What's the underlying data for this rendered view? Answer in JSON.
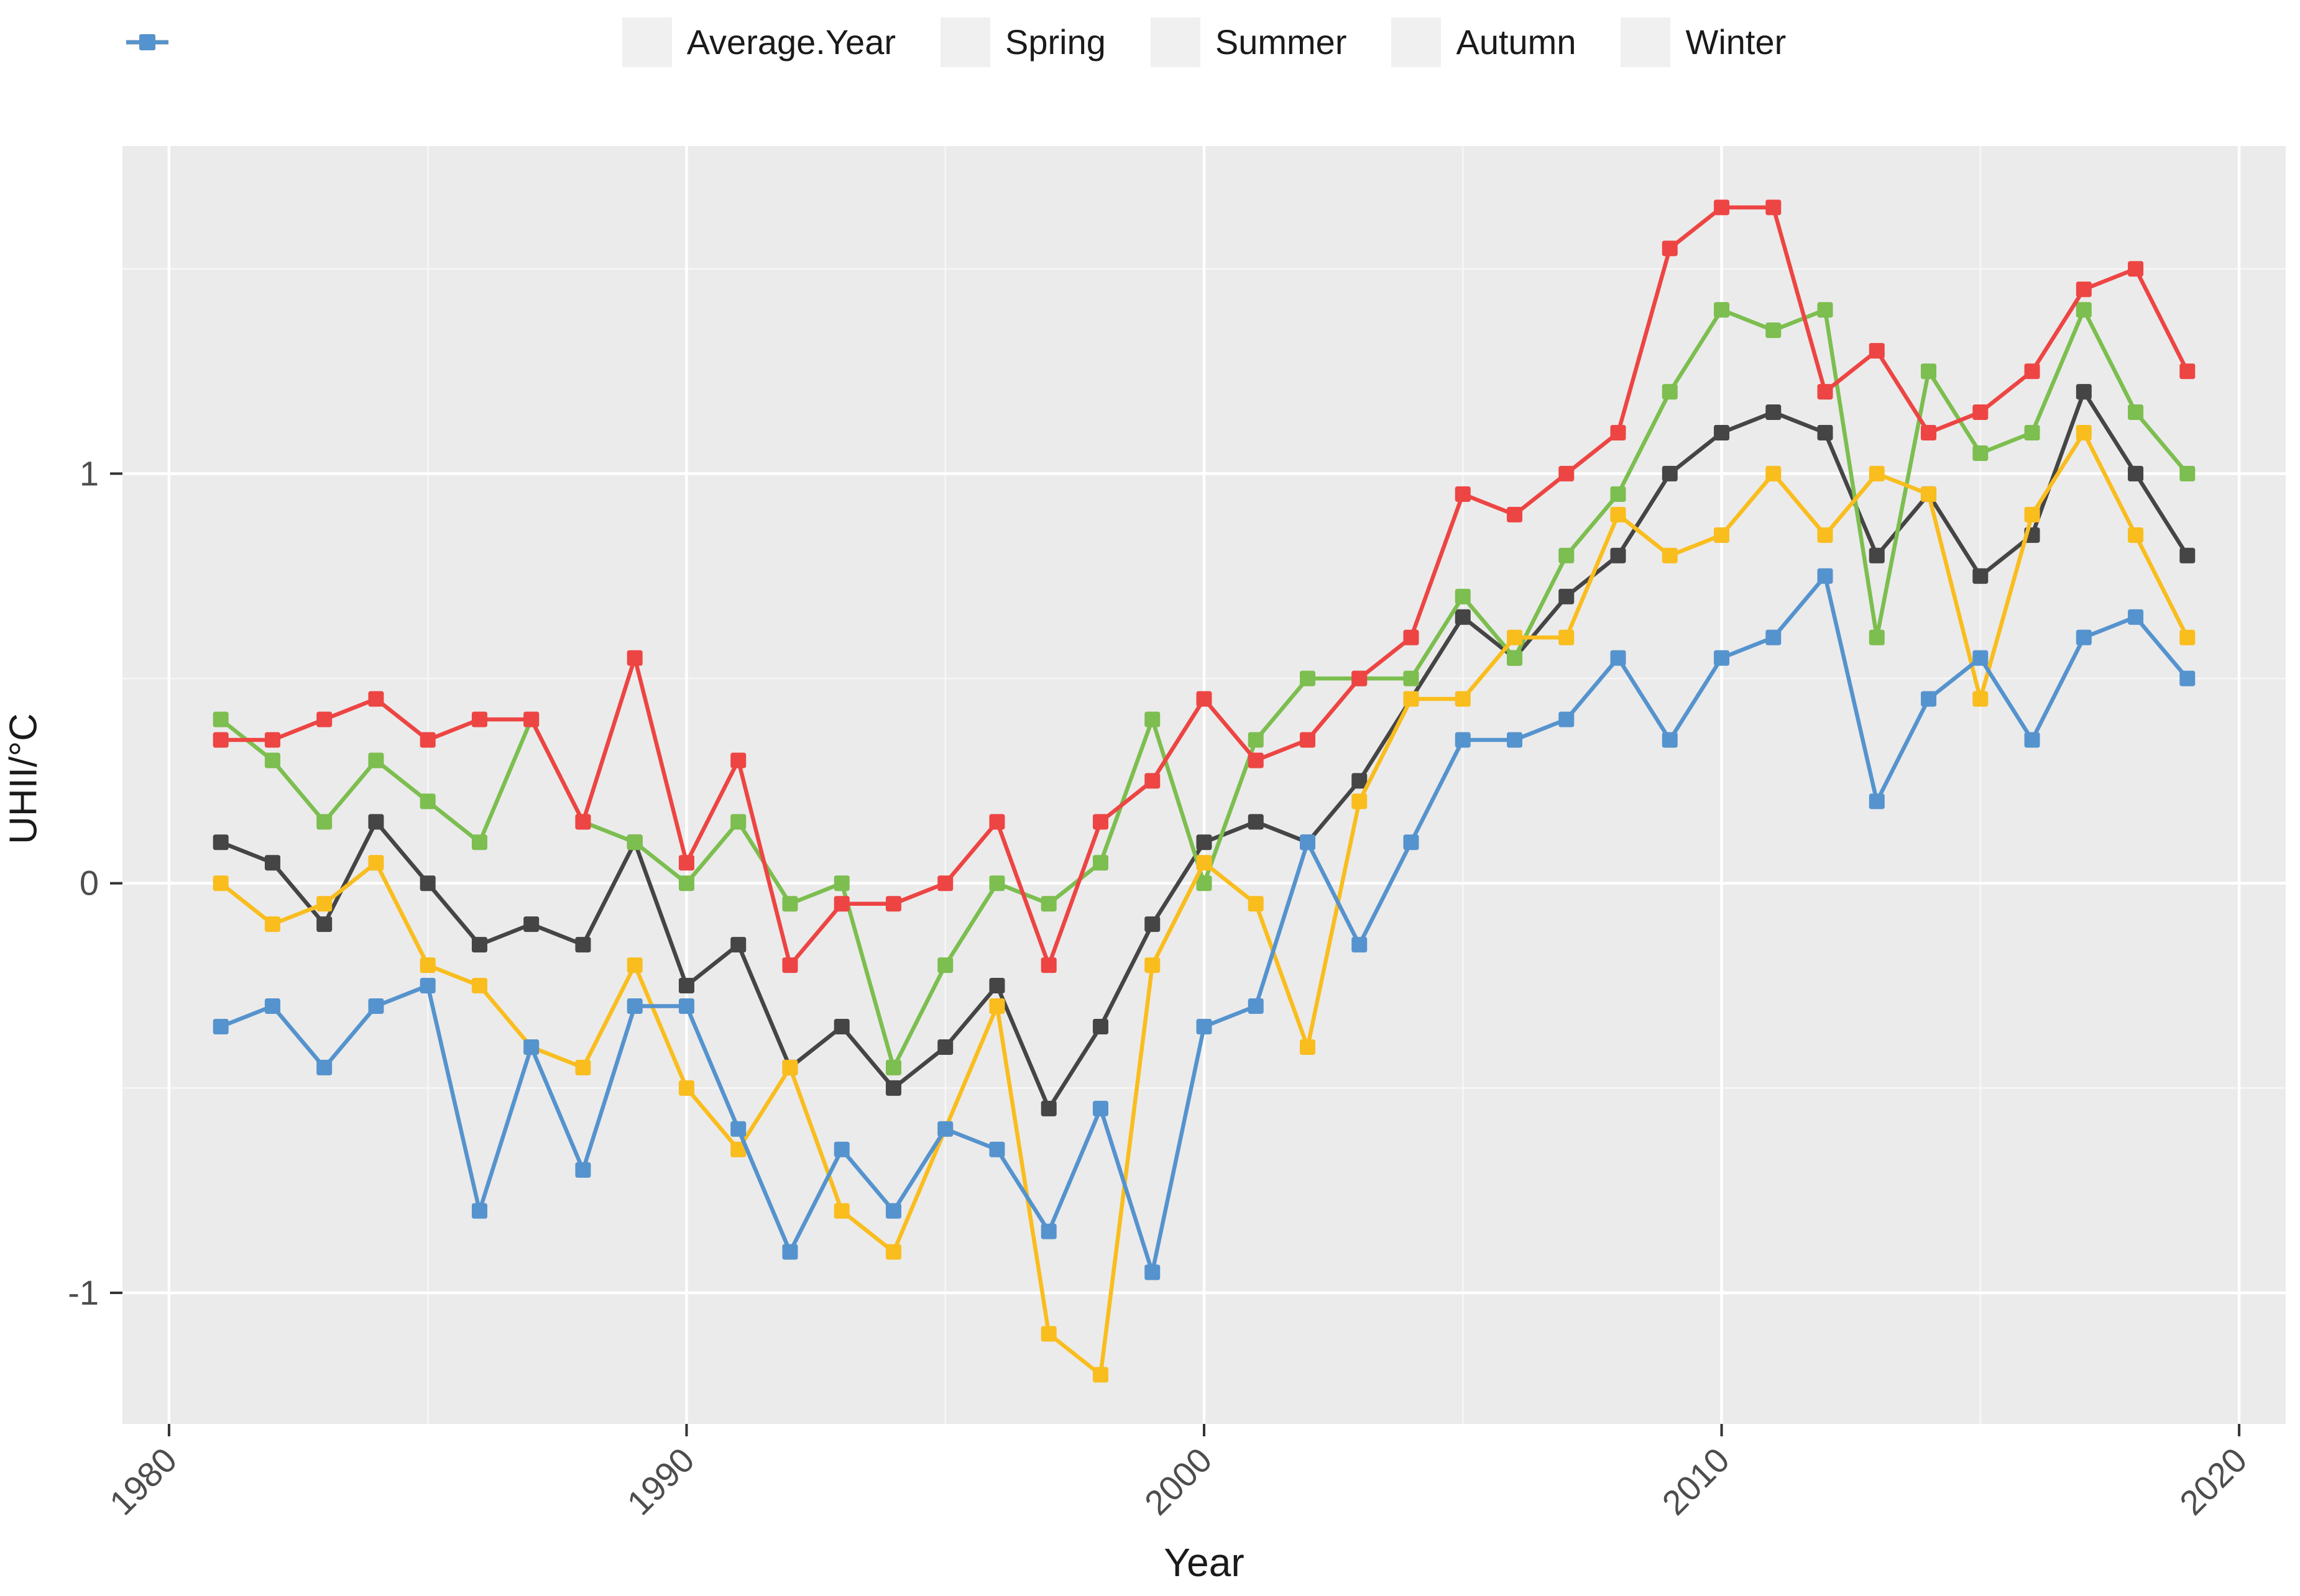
{
  "chart_data": {
    "type": "line",
    "title": "",
    "xlabel": "Year",
    "ylabel": "UHII/°C",
    "x": [
      1981,
      1982,
      1983,
      1984,
      1985,
      1986,
      1987,
      1988,
      1989,
      1990,
      1991,
      1992,
      1993,
      1994,
      1995,
      1996,
      1997,
      1998,
      1999,
      2000,
      2001,
      2002,
      2003,
      2004,
      2005,
      2006,
      2007,
      2008,
      2009,
      2010,
      2011,
      2012,
      2013,
      2014,
      2015,
      2016,
      2017,
      2018,
      2019
    ],
    "series": [
      {
        "name": "Average.Year",
        "color": "#454545",
        "values": [
          0.1,
          0.05,
          -0.1,
          0.15,
          0,
          -0.15,
          -0.1,
          -0.15,
          0.1,
          -0.25,
          -0.15,
          -0.45,
          -0.35,
          -0.5,
          -0.4,
          -0.25,
          -0.55,
          -0.35,
          -0.1,
          0.1,
          0.15,
          0.1,
          0.25,
          0.45,
          0.65,
          0.55,
          0.7,
          0.8,
          1.0,
          1.1,
          1.15,
          1.1,
          0.8,
          0.95,
          0.75,
          0.85,
          1.2,
          1.0,
          0.8
        ]
      },
      {
        "name": "Spring",
        "color": "#7CBE4F",
        "values": [
          0.4,
          0.3,
          0.15,
          0.3,
          0.2,
          0.1,
          0.4,
          0.15,
          0.1,
          0,
          0.15,
          -0.05,
          0,
          -0.45,
          -0.2,
          0,
          -0.05,
          0.05,
          0.4,
          0,
          0.35,
          0.5,
          0.5,
          0.5,
          0.7,
          0.55,
          0.8,
          0.95,
          1.2,
          1.4,
          1.35,
          1.4,
          0.6,
          1.25,
          1.05,
          1.1,
          1.4,
          1.15,
          1.0
        ]
      },
      {
        "name": "Summer",
        "color": "#ED4543",
        "values": [
          0.35,
          0.35,
          0.4,
          0.45,
          0.35,
          0.4,
          0.4,
          0.15,
          0.55,
          0.05,
          0.3,
          -0.2,
          -0.05,
          -0.05,
          0,
          0.15,
          -0.2,
          0.15,
          0.25,
          0.45,
          0.3,
          0.35,
          0.5,
          0.6,
          0.95,
          0.9,
          1.0,
          1.1,
          1.55,
          1.65,
          1.65,
          1.2,
          1.3,
          1.1,
          1.15,
          1.25,
          1.45,
          1.5,
          1.25
        ]
      },
      {
        "name": "Autumn",
        "color": "#F9BD1E",
        "values": [
          0,
          -0.1,
          -0.05,
          0.05,
          -0.2,
          -0.25,
          -0.4,
          -0.45,
          -0.2,
          -0.5,
          -0.65,
          -0.45,
          -0.8,
          -0.9,
          -0.6,
          -0.3,
          -1.1,
          -1.2,
          -0.2,
          0.05,
          -0.05,
          -0.4,
          0.2,
          0.45,
          0.45,
          0.6,
          0.6,
          0.9,
          0.8,
          0.85,
          1.0,
          0.85,
          1.0,
          0.95,
          0.45,
          0.9,
          1.1,
          0.85,
          0.6
        ]
      },
      {
        "name": "Winter",
        "color": "#5593CE",
        "values": [
          -0.35,
          -0.3,
          -0.45,
          -0.3,
          -0.25,
          -0.8,
          -0.4,
          -0.7,
          -0.3,
          -0.3,
          -0.6,
          -0.9,
          -0.65,
          -0.8,
          -0.6,
          -0.65,
          -0.85,
          -0.55,
          -0.95,
          -0.35,
          -0.3,
          0.1,
          -0.15,
          0.1,
          0.35,
          0.35,
          0.4,
          0.55,
          0.35,
          0.55,
          0.6,
          0.75,
          0.2,
          0.45,
          0.55,
          0.35,
          0.6,
          0.65,
          0.5
        ]
      }
    ],
    "x_ticks": [
      1980,
      1990,
      2000,
      2010,
      2020
    ],
    "x_tick_labels": [
      "1980",
      "1990",
      "2000",
      "2010",
      "2020"
    ],
    "x_minor_ticks": [
      1985,
      1995,
      2005,
      2015
    ],
    "y_ticks": [
      1,
      0,
      -1
    ],
    "y_tick_labels": [
      "1",
      "0",
      "-1"
    ],
    "y_minor_ticks": [
      1.5,
      0.5,
      -0.5
    ],
    "xlim": [
      1979.1,
      2020.9
    ],
    "ylim": [
      -1.32,
      1.8
    ],
    "grid": "on",
    "legend_position": "top"
  },
  "style": {
    "panel_color": "#EBEBEB",
    "major_grid_color": "#FFFFFF",
    "minor_grid_color": "#F7F7F7",
    "tick_mark_color": "#333333",
    "tick_label_color": "#4D4D4D",
    "axis_title_color": "#1a1a1a",
    "legend_key_fill": "#F0F0F0",
    "background": "#FFFFFF"
  }
}
